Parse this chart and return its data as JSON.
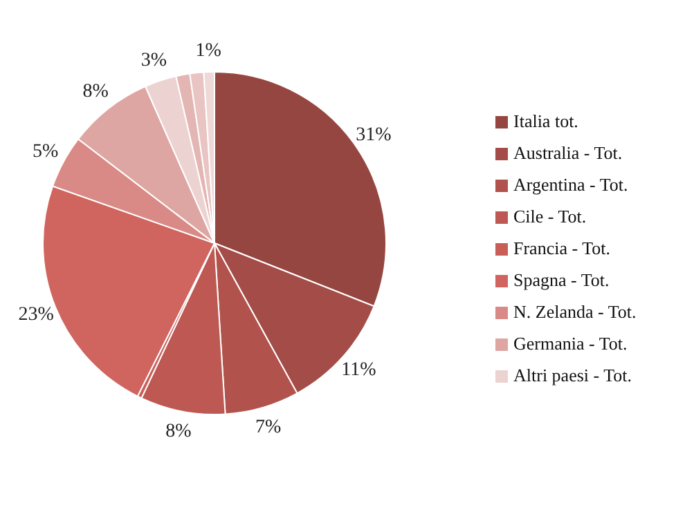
{
  "chart_data": {
    "type": "pie",
    "categories": [
      "Italia tot.",
      "Australia - Tot.",
      "Argentina - Tot.",
      "Cile - Tot.",
      "Francia - Tot.",
      "Spagna - Tot.",
      "N. Zelanda - Tot.",
      "Germania - Tot.",
      "Altri paesi - Tot.",
      null,
      null,
      null
    ],
    "values": [
      31,
      11,
      7,
      8,
      0.4,
      23,
      5,
      8,
      3,
      1.3,
      1.3,
      1
    ],
    "value_labels": [
      "31%",
      "11%",
      "7%",
      "8%",
      null,
      "23%",
      "5%",
      "8%",
      "3%",
      null,
      null,
      "1%"
    ],
    "colors": [
      "#964640",
      "#a44c47",
      "#b1524d",
      "#bd5853",
      "#c95e59",
      "#d0655f",
      "#d98a86",
      "#dea6a3",
      "#ecd3d2",
      "#e3b5b3",
      "#e8c4c3",
      "#efd9d8"
    ],
    "legend": "right"
  }
}
